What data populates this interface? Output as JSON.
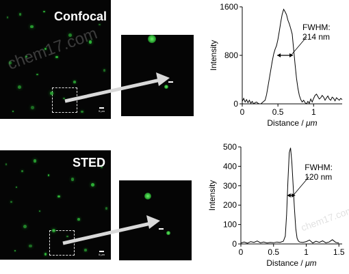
{
  "watermark": "chem17.com",
  "panels": [
    {
      "label": "Confocal",
      "scale_label": "5 μm",
      "spots": [
        [
          0.06,
          0.14
        ],
        [
          0.17,
          0.11
        ],
        [
          0.27,
          0.21
        ],
        [
          0.39,
          0.09
        ],
        [
          0.08,
          0.52
        ],
        [
          0.16,
          0.72
        ],
        [
          0.33,
          0.62
        ],
        [
          0.5,
          0.47
        ],
        [
          0.28,
          0.89
        ],
        [
          0.57,
          0.82
        ],
        [
          0.66,
          0.68
        ],
        [
          0.8,
          0.34
        ],
        [
          0.89,
          0.2
        ],
        [
          0.73,
          0.93
        ],
        [
          0.45,
          0.77
        ],
        [
          0.11,
          0.93
        ],
        [
          0.93,
          0.58
        ],
        [
          0.62,
          0.28
        ],
        [
          0.23,
          0.47
        ],
        [
          0.4,
          0.4
        ]
      ],
      "zoom_spots": [
        [
          0.42,
          0.05,
          6
        ],
        [
          0.62,
          0.64,
          3
        ]
      ],
      "chart_data": {
        "type": "line",
        "xlabel_prefix": "Distance / ",
        "xlabel_unit": "μm",
        "ylabel": "Intensity",
        "xlim": [
          0,
          1.4
        ],
        "ylim": [
          0,
          1600
        ],
        "xticks": [
          0,
          0.5,
          1
        ],
        "yticks": [
          0,
          800,
          1600
        ],
        "annotation": [
          "FWHM:",
          "214 nm"
        ],
        "fwhm_y": 800,
        "fwhm_x": [
          0.49,
          0.71
        ],
        "x": [
          0.0,
          0.02,
          0.04,
          0.06,
          0.08,
          0.1,
          0.12,
          0.14,
          0.16,
          0.18,
          0.2,
          0.22,
          0.24,
          0.26,
          0.28,
          0.3,
          0.32,
          0.34,
          0.36,
          0.38,
          0.4,
          0.42,
          0.44,
          0.46,
          0.48,
          0.5,
          0.52,
          0.54,
          0.56,
          0.58,
          0.6,
          0.62,
          0.64,
          0.66,
          0.68,
          0.7,
          0.72,
          0.74,
          0.76,
          0.78,
          0.8,
          0.82,
          0.84,
          0.86,
          0.88,
          0.9,
          0.92,
          0.94,
          0.96,
          0.98,
          1.0,
          1.02,
          1.04,
          1.06,
          1.08,
          1.1,
          1.12,
          1.14,
          1.16,
          1.18,
          1.2,
          1.22,
          1.24,
          1.26,
          1.28,
          1.3,
          1.32,
          1.34,
          1.36,
          1.38,
          1.4
        ],
        "y": [
          40,
          90,
          30,
          70,
          20,
          60,
          10,
          40,
          0,
          20,
          30,
          10,
          0,
          0,
          20,
          40,
          60,
          150,
          280,
          420,
          560,
          700,
          820,
          900,
          960,
          1060,
          1200,
          1350,
          1480,
          1560,
          1520,
          1470,
          1380,
          1320,
          1240,
          1150,
          900,
          650,
          420,
          260,
          140,
          70,
          30,
          60,
          20,
          0,
          40,
          10,
          80,
          30,
          90,
          140,
          160,
          120,
          80,
          100,
          140,
          110,
          60,
          100,
          130,
          80,
          60,
          110,
          90,
          50,
          100,
          80,
          60,
          90,
          70
        ]
      }
    },
    {
      "label": "STED",
      "scale_label": "5 μm",
      "spots": [
        [
          0.05,
          0.12
        ],
        [
          0.19,
          0.18
        ],
        [
          0.3,
          0.08
        ],
        [
          0.43,
          0.22
        ],
        [
          0.09,
          0.46
        ],
        [
          0.21,
          0.68
        ],
        [
          0.35,
          0.55
        ],
        [
          0.52,
          0.41
        ],
        [
          0.26,
          0.86
        ],
        [
          0.6,
          0.78
        ],
        [
          0.7,
          0.62
        ],
        [
          0.82,
          0.3
        ],
        [
          0.91,
          0.15
        ],
        [
          0.76,
          0.9
        ],
        [
          0.47,
          0.72
        ],
        [
          0.13,
          0.91
        ],
        [
          0.95,
          0.52
        ],
        [
          0.64,
          0.25
        ],
        [
          0.14,
          0.33
        ],
        [
          0.4,
          0.94
        ]
      ],
      "zoom_spots": [
        [
          0.4,
          0.2,
          5
        ],
        [
          0.68,
          0.66,
          3
        ]
      ],
      "chart_data": {
        "type": "line",
        "xlabel_prefix": "Distance / ",
        "xlabel_unit": "μm",
        "ylabel": "Intensity",
        "xlim": [
          0,
          1.55
        ],
        "ylim": [
          0,
          500
        ],
        "xticks": [
          0,
          0.5,
          1,
          1.5
        ],
        "yticks": [
          0,
          100,
          200,
          300,
          400,
          500
        ],
        "annotation": [
          "FWHM:",
          "120 nm"
        ],
        "fwhm_y": 250,
        "fwhm_x": [
          0.71,
          0.83
        ],
        "x": [
          0.0,
          0.05,
          0.1,
          0.15,
          0.2,
          0.25,
          0.3,
          0.35,
          0.4,
          0.45,
          0.5,
          0.55,
          0.6,
          0.65,
          0.68,
          0.7,
          0.72,
          0.74,
          0.76,
          0.78,
          0.8,
          0.82,
          0.84,
          0.86,
          0.88,
          0.9,
          0.95,
          1.0,
          1.05,
          1.1,
          1.15,
          1.2,
          1.25,
          1.3,
          1.35,
          1.4,
          1.45,
          1.5
        ],
        "y": [
          5,
          10,
          4,
          12,
          8,
          15,
          6,
          10,
          5,
          8,
          6,
          10,
          8,
          14,
          40,
          150,
          320,
          470,
          495,
          420,
          300,
          180,
          80,
          30,
          15,
          10,
          8,
          12,
          20,
          5,
          14,
          8,
          16,
          6,
          10,
          22,
          8,
          5
        ]
      }
    }
  ]
}
